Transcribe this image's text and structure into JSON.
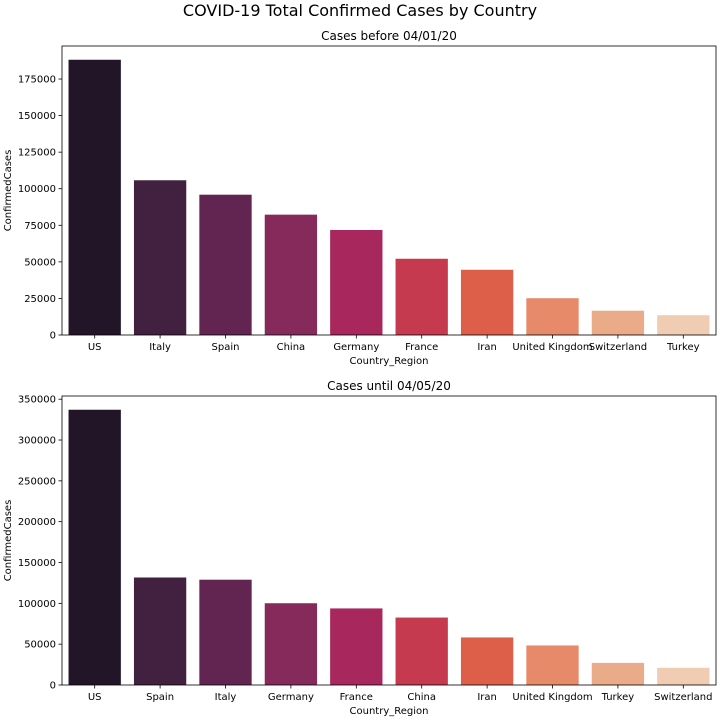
{
  "figure": {
    "title": "COVID-19 Total Confirmed Cases by Country"
  },
  "chart_data": [
    {
      "type": "bar",
      "title": "Cases before 04/01/20",
      "xlabel": "Country_Region",
      "ylabel": "ConfirmedCases",
      "categories": [
        "US",
        "Italy",
        "Spain",
        "China",
        "Germany",
        "France",
        "Iran",
        "United Kingdom",
        "Switzerland",
        "Turkey"
      ],
      "values": [
        188172,
        105792,
        95923,
        82279,
        71808,
        52128,
        44605,
        25150,
        16605,
        13531
      ],
      "colors": [
        "#231528",
        "#42203f",
        "#622552",
        "#862a5c",
        "#a8275c",
        "#c63a4f",
        "#dd5e49",
        "#e68a6a",
        "#eaab89",
        "#f0ccb2"
      ],
      "ylim": [
        0,
        197580
      ],
      "yticks": [
        0,
        25000,
        50000,
        75000,
        100000,
        125000,
        150000,
        175000
      ],
      "grid": false,
      "legend": "none"
    },
    {
      "type": "bar",
      "title": "Cases until 04/05/20",
      "xlabel": "Country_Region",
      "ylabel": "ConfirmedCases",
      "categories": [
        "US",
        "Spain",
        "Italy",
        "Germany",
        "France",
        "China",
        "Iran",
        "United Kingdom",
        "Turkey",
        "Switzerland"
      ],
      "values": [
        337072,
        131646,
        128948,
        100123,
        93780,
        82602,
        58226,
        48436,
        27069,
        21100
      ],
      "colors": [
        "#231528",
        "#42203f",
        "#622552",
        "#862a5c",
        "#a8275c",
        "#c63a4f",
        "#dd5e49",
        "#e68a6a",
        "#eaab89",
        "#f0ccb2"
      ],
      "ylim": [
        0,
        353900
      ],
      "yticks": [
        0,
        50000,
        100000,
        150000,
        200000,
        250000,
        300000,
        350000
      ],
      "grid": false,
      "legend": "none"
    }
  ]
}
